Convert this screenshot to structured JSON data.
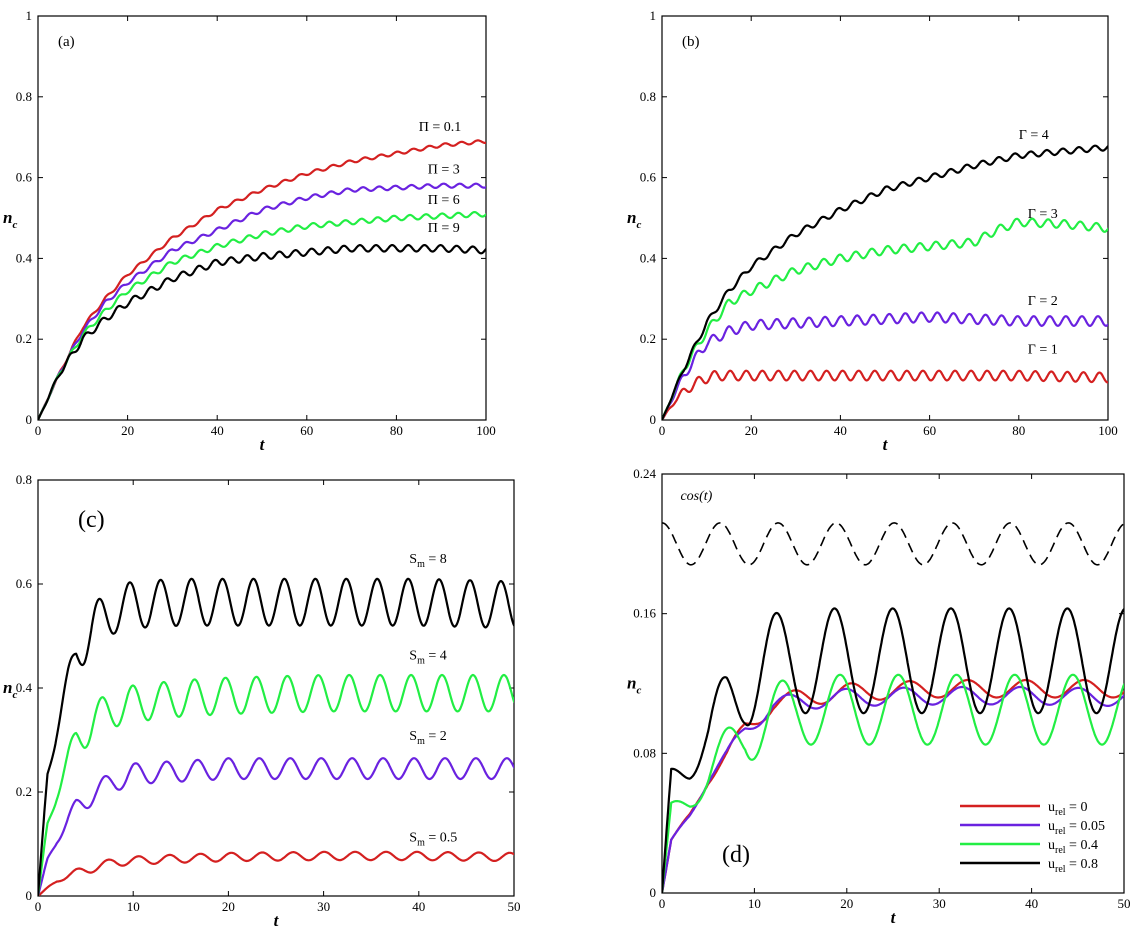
{
  "chart_data": [
    {
      "type": "line",
      "panel": "(a)",
      "xlabel": "t",
      "ylabel": "n_c",
      "xlim": [
        0,
        100
      ],
      "ylim": [
        0,
        1
      ],
      "xticks": [
        "0",
        "20",
        "40",
        "60",
        "80",
        "100"
      ],
      "yticks": [
        "0",
        "0.2",
        "0.4",
        "0.6",
        "0.8",
        "1"
      ],
      "series": [
        {
          "name": "Π = 0.1",
          "color": "#d42020",
          "x": [
            0,
            5,
            10,
            15,
            20,
            30,
            40,
            50,
            60,
            70,
            80,
            90,
            100
          ],
          "y": [
            0,
            0.12,
            0.23,
            0.3,
            0.36,
            0.45,
            0.52,
            0.57,
            0.61,
            0.64,
            0.66,
            0.68,
            0.69
          ],
          "osc_amp": 0.004,
          "osc_period": 3.6
        },
        {
          "name": "Π = 3",
          "color": "#6a22e0",
          "x": [
            0,
            5,
            10,
            15,
            20,
            30,
            40,
            50,
            60,
            70,
            80,
            90,
            100
          ],
          "y": [
            0,
            0.12,
            0.22,
            0.29,
            0.34,
            0.42,
            0.47,
            0.52,
            0.55,
            0.57,
            0.575,
            0.58,
            0.58
          ],
          "osc_amp": 0.005,
          "osc_period": 3.6
        },
        {
          "name": "Π = 6",
          "color": "#22ee44",
          "x": [
            0,
            5,
            10,
            15,
            20,
            30,
            40,
            50,
            60,
            70,
            80,
            90,
            100
          ],
          "y": [
            0,
            0.12,
            0.21,
            0.27,
            0.32,
            0.39,
            0.43,
            0.46,
            0.48,
            0.49,
            0.5,
            0.505,
            0.51
          ],
          "osc_amp": 0.006,
          "osc_period": 3.6
        },
        {
          "name": "Π = 9",
          "color": "#000000",
          "x": [
            0,
            5,
            10,
            15,
            20,
            30,
            40,
            50,
            60,
            70,
            80,
            90,
            100
          ],
          "y": [
            0,
            0.12,
            0.2,
            0.25,
            0.29,
            0.35,
            0.39,
            0.405,
            0.415,
            0.425,
            0.425,
            0.425,
            0.42
          ],
          "osc_amp": 0.008,
          "osc_period": 3.6
        }
      ],
      "annotations": [
        {
          "text": "Π = 0.1",
          "x": 85,
          "y": 0.715
        },
        {
          "text": "Π = 3",
          "x": 87,
          "y": 0.61
        },
        {
          "text": "Π = 6",
          "x": 87,
          "y": 0.535
        },
        {
          "text": "Π = 9",
          "x": 87,
          "y": 0.465
        }
      ]
    },
    {
      "type": "line",
      "panel": "(b)",
      "xlabel": "t",
      "ylabel": "n_c",
      "xlim": [
        0,
        100
      ],
      "ylim": [
        0,
        1
      ],
      "xticks": [
        "0",
        "20",
        "40",
        "60",
        "80",
        "100"
      ],
      "yticks": [
        "0",
        "0.2",
        "0.4",
        "0.6",
        "0.8",
        "1"
      ],
      "series": [
        {
          "name": "Γ = 1",
          "color": "#d42020",
          "x": [
            0,
            3,
            6,
            9,
            12,
            20,
            40,
            60,
            80,
            100
          ],
          "y": [
            0,
            0.05,
            0.08,
            0.1,
            0.11,
            0.11,
            0.11,
            0.11,
            0.11,
            0.105
          ],
          "osc_amp": 0.012,
          "osc_period": 3.6
        },
        {
          "name": "Γ = 2",
          "color": "#6a22e0",
          "x": [
            0,
            3,
            6,
            10,
            15,
            20,
            30,
            40,
            50,
            60,
            70,
            80,
            90,
            100
          ],
          "y": [
            0,
            0.07,
            0.13,
            0.19,
            0.22,
            0.235,
            0.24,
            0.245,
            0.25,
            0.255,
            0.25,
            0.245,
            0.245,
            0.245
          ],
          "osc_amp": 0.012,
          "osc_period": 3.6
        },
        {
          "name": "Γ = 3",
          "color": "#22ee44",
          "x": [
            0,
            5,
            10,
            15,
            20,
            30,
            40,
            50,
            60,
            70,
            75,
            80,
            90,
            100
          ],
          "y": [
            0,
            0.13,
            0.22,
            0.29,
            0.32,
            0.37,
            0.4,
            0.42,
            0.43,
            0.44,
            0.47,
            0.49,
            0.485,
            0.475
          ],
          "osc_amp": 0.01,
          "osc_period": 3.6
        },
        {
          "name": "Γ = 4",
          "color": "#000000",
          "x": [
            0,
            5,
            10,
            15,
            20,
            30,
            40,
            50,
            60,
            70,
            80,
            90,
            100
          ],
          "y": [
            0,
            0.13,
            0.24,
            0.32,
            0.38,
            0.46,
            0.52,
            0.57,
            0.6,
            0.63,
            0.655,
            0.665,
            0.675
          ],
          "osc_amp": 0.007,
          "osc_period": 3.6
        }
      ],
      "annotations": [
        {
          "text": "Γ = 4",
          "x": 80,
          "y": 0.695
        },
        {
          "text": "Γ = 3",
          "x": 82,
          "y": 0.5
        },
        {
          "text": "Γ = 2",
          "x": 82,
          "y": 0.285
        },
        {
          "text": "Γ = 1",
          "x": 82,
          "y": 0.165
        }
      ]
    },
    {
      "type": "line",
      "panel": "(c)",
      "xlabel": "t",
      "ylabel": "n_c",
      "xlim": [
        0,
        50
      ],
      "ylim": [
        0,
        0.8
      ],
      "xticks": [
        "0",
        "10",
        "20",
        "30",
        "40",
        "50"
      ],
      "yticks": [
        "0",
        "0.2",
        "0.4",
        "0.6",
        "0.8"
      ],
      "series": [
        {
          "name": "S_m = 0.5",
          "color": "#d42020",
          "x": [
            0,
            2,
            4,
            6,
            8,
            10,
            15,
            20,
            30,
            40,
            50
          ],
          "y": [
            0,
            0.03,
            0.045,
            0.055,
            0.065,
            0.068,
            0.072,
            0.075,
            0.077,
            0.077,
            0.075
          ],
          "osc_amp": 0.008,
          "osc_period": 3.25
        },
        {
          "name": "S_m = 2",
          "color": "#6a22e0",
          "x": [
            0,
            1,
            2,
            4,
            6,
            8,
            10,
            15,
            20,
            30,
            40,
            50
          ],
          "y": [
            0,
            0.07,
            0.11,
            0.17,
            0.2,
            0.22,
            0.235,
            0.24,
            0.245,
            0.245,
            0.245,
            0.245
          ],
          "osc_amp": 0.02,
          "osc_period": 3.25
        },
        {
          "name": "S_m = 4",
          "color": "#22ee44",
          "x": [
            0,
            1,
            2,
            4,
            6,
            8,
            10,
            15,
            20,
            30,
            40,
            50
          ],
          "y": [
            0,
            0.14,
            0.2,
            0.3,
            0.34,
            0.36,
            0.37,
            0.38,
            0.385,
            0.39,
            0.39,
            0.39
          ],
          "osc_amp": 0.035,
          "osc_period": 3.25
        },
        {
          "name": "S_m = 8",
          "color": "#000000",
          "x": [
            0,
            1,
            2,
            4,
            6,
            8,
            10,
            15,
            20,
            30,
            40,
            50
          ],
          "y": [
            0,
            0.24,
            0.32,
            0.47,
            0.52,
            0.55,
            0.56,
            0.565,
            0.565,
            0.565,
            0.565,
            0.56
          ],
          "osc_amp": 0.045,
          "osc_period": 3.25
        }
      ],
      "annotations": [
        {
          "text": "S",
          "sub": "m",
          "rest": " = 8",
          "x": 39,
          "y": 0.64
        },
        {
          "text": "S",
          "sub": "m",
          "rest": " = 4",
          "x": 39,
          "y": 0.455
        },
        {
          "text": "S",
          "sub": "m",
          "rest": " = 2",
          "x": 39,
          "y": 0.3
        },
        {
          "text": "S",
          "sub": "m",
          "rest": " = 0.5",
          "x": 39,
          "y": 0.105
        }
      ]
    },
    {
      "type": "line",
      "panel": "(d)",
      "xlabel": "t",
      "ylabel": "n_c",
      "xlim": [
        0,
        50
      ],
      "ylim": [
        0,
        0.24
      ],
      "xticks": [
        "0",
        "10",
        "20",
        "30",
        "40",
        "50"
      ],
      "yticks": [
        "0",
        "0.08",
        "0.16",
        "0.24"
      ],
      "series": [
        {
          "name": "u_rel = 0",
          "color": "#d42020",
          "x": [
            0,
            1,
            3,
            5,
            7,
            9,
            12,
            15,
            20,
            30,
            40,
            50
          ],
          "y": [
            0,
            0.03,
            0.045,
            0.065,
            0.078,
            0.095,
            0.108,
            0.112,
            0.115,
            0.117,
            0.117,
            0.117
          ],
          "osc_amp": 0.005,
          "osc_period": 6.3
        },
        {
          "name": "u_rel = 0.05",
          "color": "#6a22e0",
          "x": [
            0,
            1,
            3,
            5,
            7,
            9,
            12,
            15,
            20,
            30,
            40,
            50
          ],
          "y": [
            0,
            0.03,
            0.045,
            0.065,
            0.078,
            0.095,
            0.107,
            0.11,
            0.112,
            0.113,
            0.113,
            0.112
          ],
          "osc_amp": 0.005,
          "osc_period": 6.3
        },
        {
          "name": "u_rel = 0.4",
          "color": "#22ee44",
          "x": [
            0,
            1,
            3,
            5,
            7,
            9,
            12,
            15,
            20,
            30,
            40,
            50
          ],
          "y": [
            0,
            0.05,
            0.055,
            0.065,
            0.08,
            0.095,
            0.1,
            0.105,
            0.105,
            0.105,
            0.105,
            0.105
          ],
          "osc_amp": 0.02,
          "osc_period": 6.3
        },
        {
          "name": "u_rel = 0.8",
          "color": "#000000",
          "x": [
            0,
            1,
            3,
            5,
            7,
            9,
            12,
            15,
            20,
            30,
            40,
            50
          ],
          "y": [
            0,
            0.07,
            0.075,
            0.085,
            0.11,
            0.125,
            0.13,
            0.133,
            0.133,
            0.133,
            0.133,
            0.133
          ],
          "osc_amp": 0.03,
          "osc_period": 6.3
        }
      ],
      "reference": {
        "name": "cos(t)",
        "color": "#000000",
        "dash": "10,6",
        "center": 0.2,
        "amp": 0.012,
        "period": 6.283
      },
      "annotations": [
        {
          "text": "cos(t)",
          "x": 2,
          "y": 0.225
        }
      ],
      "legend": {
        "position": "bottom-right",
        "entries": [
          {
            "label": "u",
            "sub": "rel",
            "rest": " = 0",
            "color": "#d42020"
          },
          {
            "label": "u",
            "sub": "rel",
            "rest": " = 0.05",
            "color": "#6a22e0"
          },
          {
            "label": "u",
            "sub": "rel",
            "rest": " = 0.4",
            "color": "#22ee44"
          },
          {
            "label": "u",
            "sub": "rel",
            "rest": " = 0.8",
            "color": "#000000"
          }
        ]
      }
    }
  ]
}
